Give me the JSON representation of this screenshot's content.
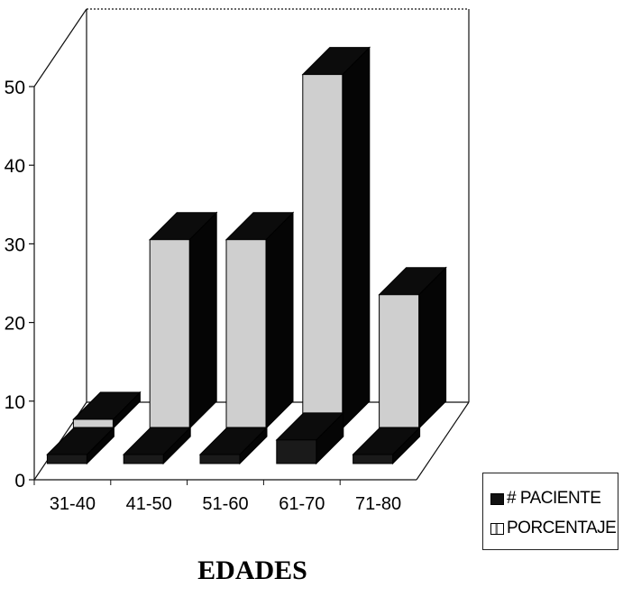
{
  "chart_data": {
    "type": "bar",
    "style": "3d-grouped",
    "xlabel": "EDADES",
    "ylabel": "",
    "ylim": [
      0,
      50
    ],
    "yticks": [
      0,
      10,
      20,
      30,
      40,
      50
    ],
    "categories": [
      "31-40",
      "41-50",
      "51-60",
      "61-70",
      "71-80"
    ],
    "series": [
      {
        "name": "# PACIENTE",
        "color": "#111111",
        "values": [
          0,
          1,
          1,
          3,
          1
        ]
      },
      {
        "name": "PORCENTAJE",
        "color": "#111111",
        "values": [
          0,
          24,
          24,
          45,
          17
        ]
      }
    ],
    "legend": {
      "position": "bottom-right",
      "entries": [
        "# PACIENTE",
        "PORCENTAJE"
      ]
    },
    "grid": false
  }
}
